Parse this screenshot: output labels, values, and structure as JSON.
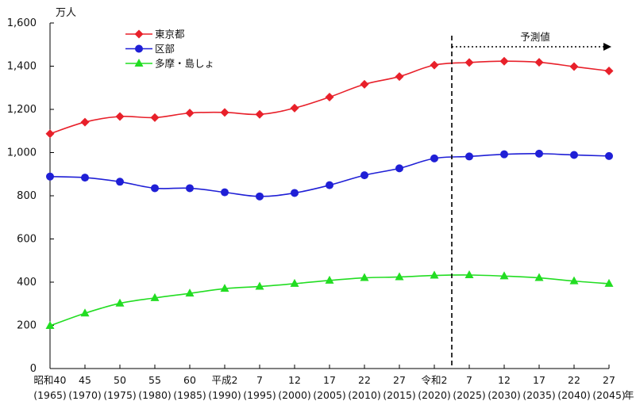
{
  "chart_data": {
    "type": "line",
    "ylabel": "万人",
    "xlabel": "年",
    "ylim": [
      0,
      1600
    ],
    "ystep": 200,
    "grid": false,
    "legend_position": "top-left",
    "y_tick_labels": [
      "0",
      "200",
      "400",
      "600",
      "800",
      "1,000",
      "1,200",
      "1,400",
      "1,600"
    ],
    "categories": [
      {
        "top": "昭和40",
        "bottom": "(1965)"
      },
      {
        "top": "45",
        "bottom": "(1970)"
      },
      {
        "top": "50",
        "bottom": "(1975)"
      },
      {
        "top": "55",
        "bottom": "(1980)"
      },
      {
        "top": "60",
        "bottom": "(1985)"
      },
      {
        "top": "平成2",
        "bottom": "(1990)"
      },
      {
        "top": "7",
        "bottom": "(1995)"
      },
      {
        "top": "12",
        "bottom": "(2000)"
      },
      {
        "top": "17",
        "bottom": "(2005)"
      },
      {
        "top": "22",
        "bottom": "(2010)"
      },
      {
        "top": "27",
        "bottom": "(2015)"
      },
      {
        "top": "令和2",
        "bottom": "(2020)"
      },
      {
        "top": "7",
        "bottom": "(2025)"
      },
      {
        "top": "12",
        "bottom": "(2030)"
      },
      {
        "top": "17",
        "bottom": "(2035)"
      },
      {
        "top": "22",
        "bottom": "(2040)"
      },
      {
        "top": "27",
        "bottom": "(2045)"
      }
    ],
    "series": [
      {
        "name": "東京都",
        "color": "#e8202a",
        "marker": "diamond",
        "values": [
          1087,
          1141,
          1167,
          1162,
          1183,
          1186,
          1177,
          1206,
          1257,
          1316,
          1352,
          1405,
          1417,
          1423,
          1418,
          1398,
          1378
        ]
      },
      {
        "name": "区部",
        "color": "#1f1fd6",
        "marker": "circle",
        "values": [
          889,
          884,
          865,
          835,
          835,
          816,
          797,
          813,
          849,
          895,
          927,
          973,
          982,
          992,
          995,
          989,
          984
        ]
      },
      {
        "name": "多摩・島しょ",
        "color": "#22dd22",
        "marker": "triangle",
        "values": [
          198,
          256,
          302,
          327,
          348,
          370,
          380,
          393,
          408,
          420,
          424,
          431,
          433,
          428,
          420,
          405,
          393
        ]
      }
    ],
    "annotation": {
      "label": "予測値",
      "divider_between": [
        11,
        12
      ],
      "line_style": "dashed"
    }
  }
}
